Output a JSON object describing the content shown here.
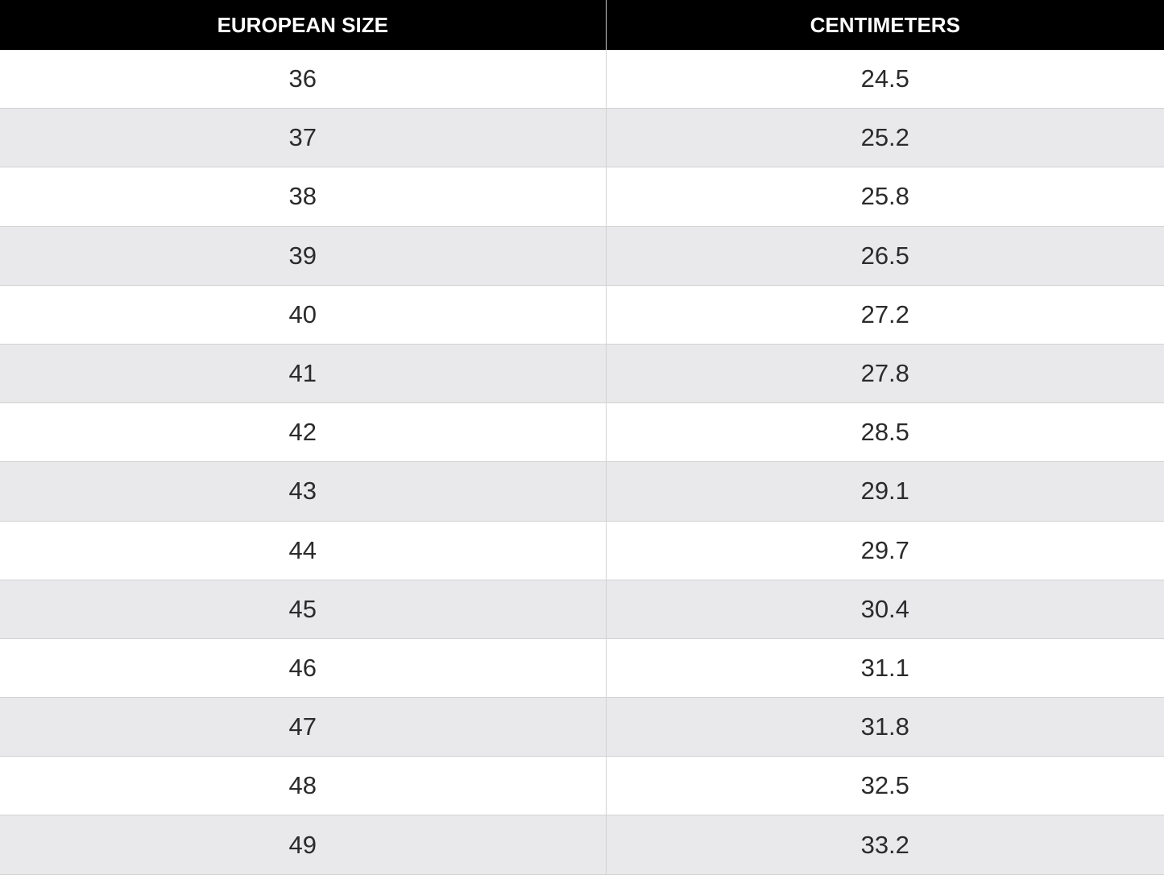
{
  "table": {
    "header": [
      "EUROPEAN SIZE",
      "CENTIMETERS"
    ],
    "rows": [
      [
        "36",
        "24.5"
      ],
      [
        "37",
        "25.2"
      ],
      [
        "38",
        "25.8"
      ],
      [
        "39",
        "26.5"
      ],
      [
        "40",
        "27.2"
      ],
      [
        "41",
        "27.8"
      ],
      [
        "42",
        "28.5"
      ],
      [
        "43",
        "29.1"
      ],
      [
        "44",
        "29.7"
      ],
      [
        "45",
        "30.4"
      ],
      [
        "46",
        "31.1"
      ],
      [
        "47",
        "31.8"
      ],
      [
        "48",
        "32.5"
      ],
      [
        "49",
        "33.2"
      ]
    ]
  }
}
